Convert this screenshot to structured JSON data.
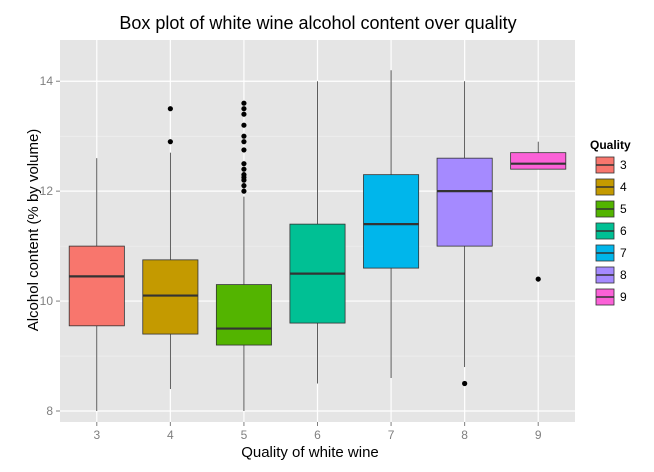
{
  "chart_data": {
    "type": "box",
    "title": "Box plot of white wine alcohol content over quality",
    "xlabel": "Quality of white wine",
    "ylabel": "Alcohol content (% by volume)",
    "ylim": [
      7.8,
      14.75
    ],
    "yticks": [
      8,
      10,
      12,
      14
    ],
    "categories": [
      "3",
      "4",
      "5",
      "6",
      "7",
      "8",
      "9"
    ],
    "grid": true,
    "legend": {
      "title": "Quality",
      "position": "right",
      "entries": [
        "3",
        "4",
        "5",
        "6",
        "7",
        "8",
        "9"
      ]
    },
    "colors": [
      "#F8766D",
      "#C49A00",
      "#53B400",
      "#00C094",
      "#00B6EB",
      "#A58AFF",
      "#FB61D7"
    ],
    "boxes": [
      {
        "category": "3",
        "whisker_low": 8.0,
        "q1": 9.55,
        "median": 10.45,
        "q3": 11.0,
        "whisker_high": 12.6,
        "outliers": []
      },
      {
        "category": "4",
        "whisker_low": 8.4,
        "q1": 9.4,
        "median": 10.1,
        "q3": 10.75,
        "whisker_high": 12.7,
        "outliers": [
          12.9,
          13.5
        ]
      },
      {
        "category": "5",
        "whisker_low": 8.0,
        "q1": 9.2,
        "median": 9.5,
        "q3": 10.3,
        "whisker_high": 11.9,
        "outliers": [
          12.0,
          12.1,
          12.2,
          12.25,
          12.3,
          12.4,
          12.5,
          12.75,
          12.9,
          13.0,
          13.2,
          13.4,
          13.5,
          13.6
        ]
      },
      {
        "category": "6",
        "whisker_low": 8.5,
        "q1": 9.6,
        "median": 10.5,
        "q3": 11.4,
        "whisker_high": 14.0,
        "outliers": []
      },
      {
        "category": "7",
        "whisker_low": 8.6,
        "q1": 10.6,
        "median": 11.4,
        "q3": 12.3,
        "whisker_high": 14.2,
        "outliers": []
      },
      {
        "category": "8",
        "whisker_low": 8.8,
        "q1": 11.0,
        "median": 12.0,
        "q3": 12.6,
        "whisker_high": 14.0,
        "outliers": [
          8.5
        ]
      },
      {
        "category": "9",
        "whisker_low": 12.4,
        "q1": 12.4,
        "median": 12.5,
        "q3": 12.7,
        "whisker_high": 12.9,
        "outliers": [
          10.4
        ]
      }
    ]
  }
}
